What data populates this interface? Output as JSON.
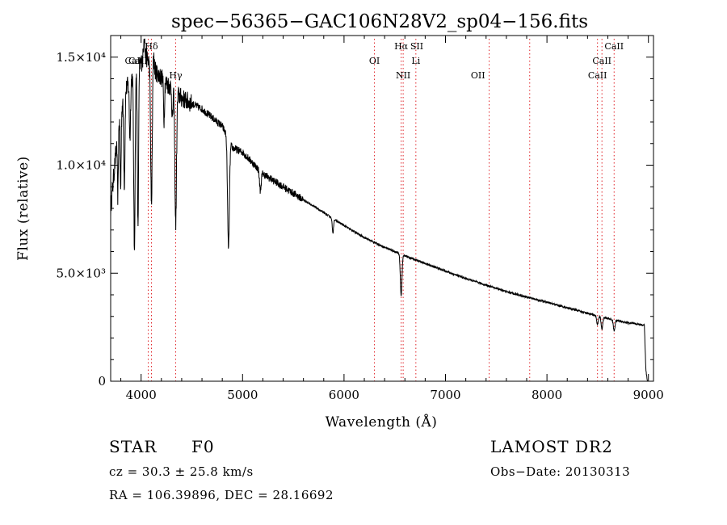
{
  "chart_data": {
    "type": "line",
    "title": "spec−56365−GAC106N28V2_sp04−156.fits",
    "xlabel": "Wavelength (Å)",
    "ylabel": "Flux (relative)",
    "xlim": [
      3700,
      9050
    ],
    "ylim": [
      0,
      16000
    ],
    "x_ticks": [
      {
        "value": 4000,
        "label": "4000"
      },
      {
        "value": 5000,
        "label": "5000"
      },
      {
        "value": 6000,
        "label": "6000"
      },
      {
        "value": 7000,
        "label": "7000"
      },
      {
        "value": 8000,
        "label": "8000"
      },
      {
        "value": 9000,
        "label": "9000"
      }
    ],
    "y_ticks": [
      {
        "value": 0,
        "label": "0"
      },
      {
        "value": 5000,
        "label": "5.0×10³"
      },
      {
        "value": 10000,
        "label": "1.0×10⁴"
      },
      {
        "value": 15000,
        "label": "1.5×10⁴"
      }
    ],
    "lines": [
      {
        "label": "Hδ",
        "x": 4102,
        "row": 0
      },
      {
        "label": "CaII",
        "x": 3969,
        "row": 1
      },
      {
        "label": "CaII",
        "x": 3934,
        "row": 1
      },
      {
        "label": "Hγ",
        "x": 4341,
        "row": 2
      },
      {
        "label": "OI",
        "x": 6300,
        "row": 1
      },
      {
        "label": "Hα",
        "x": 6563,
        "row": 0
      },
      {
        "label": "Li",
        "x": 6708,
        "row": 1
      },
      {
        "label": "NII",
        "x": 6583,
        "row": 2
      },
      {
        "label": "OII",
        "x": 7320,
        "row": 2
      },
      {
        "label": "SII",
        "x": 6717,
        "row": 0
      },
      {
        "label": "CaII",
        "x": 8662,
        "row": 0
      },
      {
        "label": "CaII",
        "x": 8542,
        "row": 1
      },
      {
        "label": "CaII",
        "x": 8498,
        "row": 2
      }
    ],
    "marker_x": [
      4102,
      4070,
      4341,
      6300,
      6563,
      6583,
      6708,
      7430,
      7830,
      8498,
      8542,
      8662
    ],
    "continuum": [
      [
        3700,
        8000
      ],
      [
        3720,
        9000
      ],
      [
        3780,
        12000
      ],
      [
        3850,
        13500
      ],
      [
        3950,
        14500
      ],
      [
        4050,
        15000
      ],
      [
        4150,
        14300
      ],
      [
        4250,
        13800
      ],
      [
        4400,
        13100
      ],
      [
        4600,
        12600
      ],
      [
        4800,
        11800
      ],
      [
        4900,
        10800
      ],
      [
        5000,
        10600
      ],
      [
        5200,
        9600
      ],
      [
        5400,
        9000
      ],
      [
        5600,
        8400
      ],
      [
        5800,
        7800
      ],
      [
        6000,
        7200
      ],
      [
        6200,
        6650
      ],
      [
        6400,
        6200
      ],
      [
        6600,
        5800
      ],
      [
        6800,
        5450
      ],
      [
        7000,
        5100
      ],
      [
        7200,
        4750
      ],
      [
        7400,
        4450
      ],
      [
        7600,
        4150
      ],
      [
        7800,
        3900
      ],
      [
        8000,
        3650
      ],
      [
        8200,
        3400
      ],
      [
        8400,
        3150
      ],
      [
        8600,
        2900
      ],
      [
        8800,
        2700
      ],
      [
        8960,
        2600
      ],
      [
        8975,
        500
      ],
      [
        8990,
        0
      ]
    ],
    "absorption": [
      {
        "x": 3934,
        "depth": 8200,
        "width": 7
      },
      {
        "x": 3969,
        "depth": 7500,
        "width": 6
      },
      {
        "x": 3890,
        "depth": 2600,
        "width": 6
      },
      {
        "x": 3835,
        "depth": 4000,
        "width": 6
      },
      {
        "x": 3798,
        "depth": 3500,
        "width": 5
      },
      {
        "x": 3771,
        "depth": 3000,
        "width": 5
      },
      {
        "x": 4102,
        "depth": 6500,
        "width": 8
      },
      {
        "x": 4341,
        "depth": 6100,
        "width": 8
      },
      {
        "x": 4861,
        "depth": 5000,
        "width": 9
      },
      {
        "x": 4226,
        "depth": 1800,
        "width": 5
      },
      {
        "x": 4308,
        "depth": 1500,
        "width": 5
      },
      {
        "x": 5175,
        "depth": 900,
        "width": 8
      },
      {
        "x": 5890,
        "depth": 700,
        "width": 6
      },
      {
        "x": 6563,
        "depth": 1900,
        "width": 8
      },
      {
        "x": 8498,
        "depth": 400,
        "width": 8
      },
      {
        "x": 8542,
        "depth": 550,
        "width": 8
      },
      {
        "x": 8662,
        "depth": 500,
        "width": 8
      }
    ],
    "emission": [
      {
        "x": 4030,
        "height": 1200,
        "width": 6
      },
      {
        "x": 4120,
        "height": 1000,
        "width": 6
      }
    ]
  },
  "footer": {
    "object_type": "STAR",
    "subclass": "F0",
    "survey": "LAMOST DR2",
    "redshift": "cz = 30.3 ± 25.8 km/s",
    "obs_date": "Obs−Date: 20130313",
    "coords": "RA = 106.39896, DEC =  28.16692"
  }
}
